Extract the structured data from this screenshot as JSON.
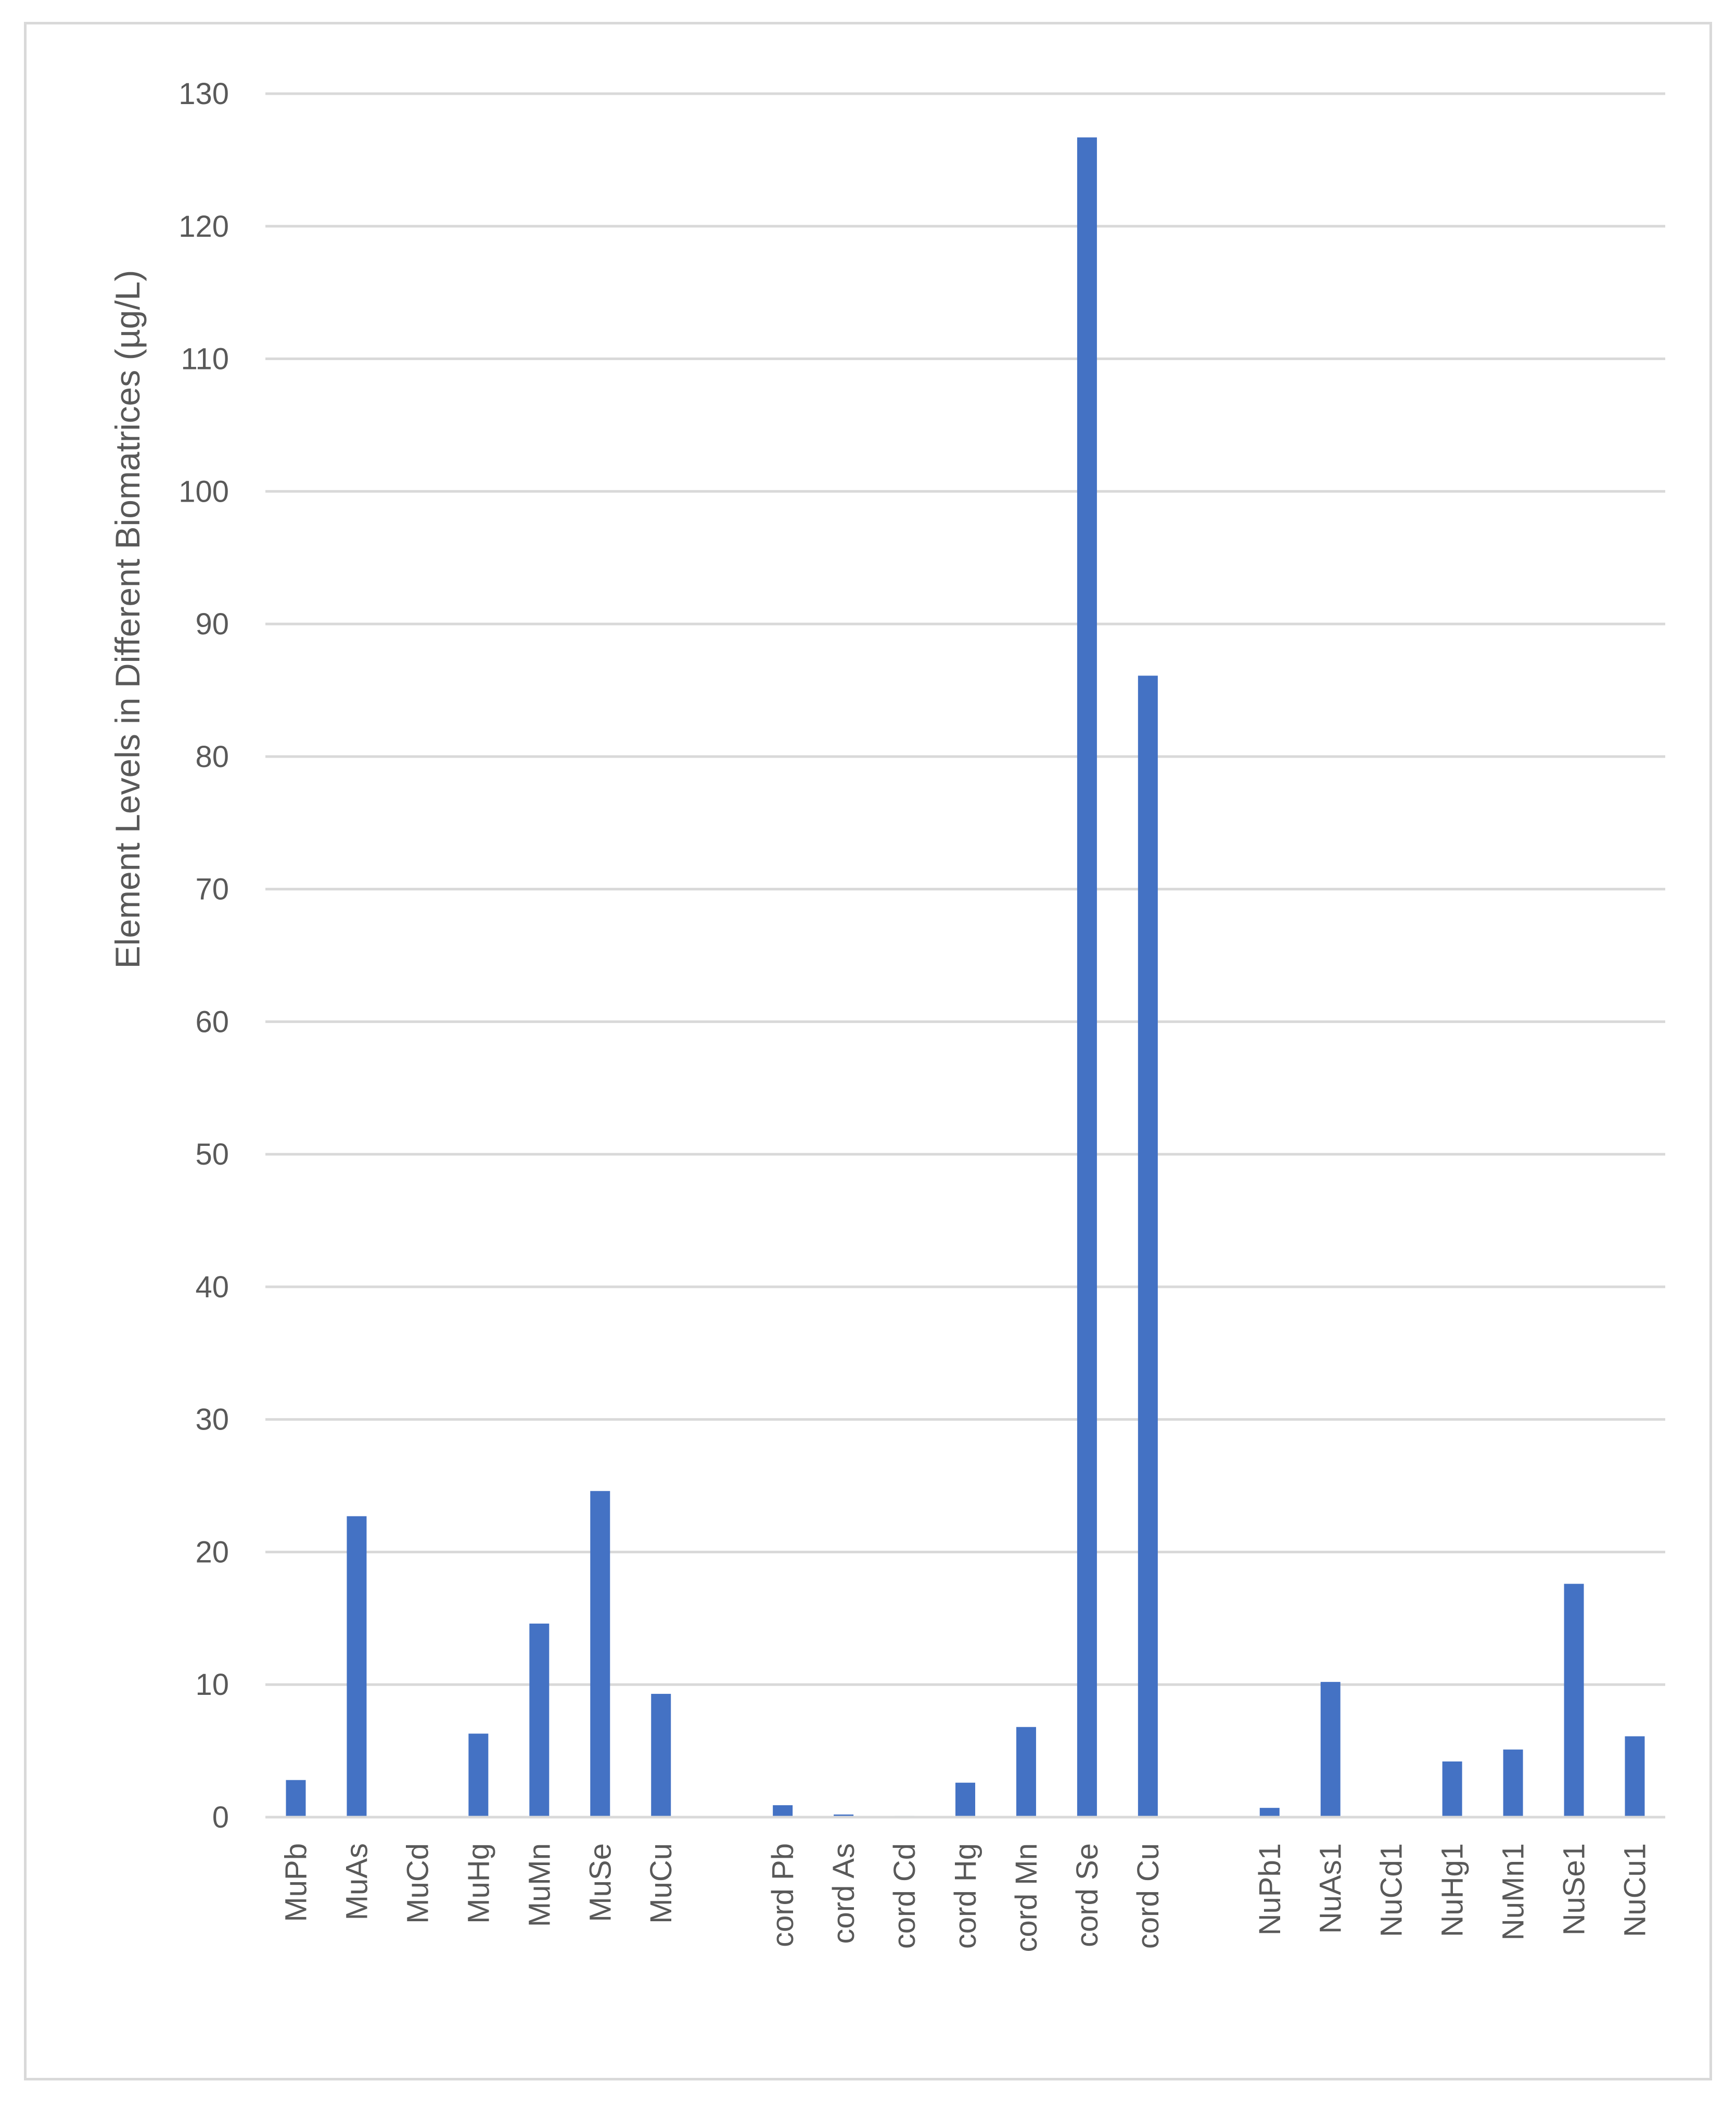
{
  "chart_data": {
    "type": "bar",
    "ylabel": "Element Levels in Different Biomatrices (µg/L)",
    "xlabel": "",
    "ylim": [
      0,
      130
    ],
    "yticks": [
      0,
      10,
      20,
      30,
      40,
      50,
      60,
      70,
      80,
      90,
      100,
      110,
      120,
      130
    ],
    "grid": true,
    "bar_color": "#4472c4",
    "gridline_color": "#d9d9d9",
    "categories": [
      "MuPb",
      "MuAs",
      "MuCd",
      "MuHg",
      "MuMn",
      "MuSe",
      "MuCu",
      "",
      "cord Pb",
      "cord As",
      "cord Cd",
      "cord Hg",
      "cord Mn",
      "cord Se",
      "cord Cu",
      "",
      "NuPb1",
      "NuAs1",
      "NuCd1",
      "NuHg1",
      "NuMn1",
      "NuSe1",
      "NuCu1"
    ],
    "values": [
      2.8,
      22.7,
      0,
      6.3,
      14.6,
      24.6,
      9.3,
      null,
      0.9,
      0.2,
      0.1,
      2.6,
      6.8,
      126.7,
      86.1,
      null,
      0.7,
      10.2,
      0,
      4.2,
      5.1,
      17.6,
      6.1
    ]
  }
}
